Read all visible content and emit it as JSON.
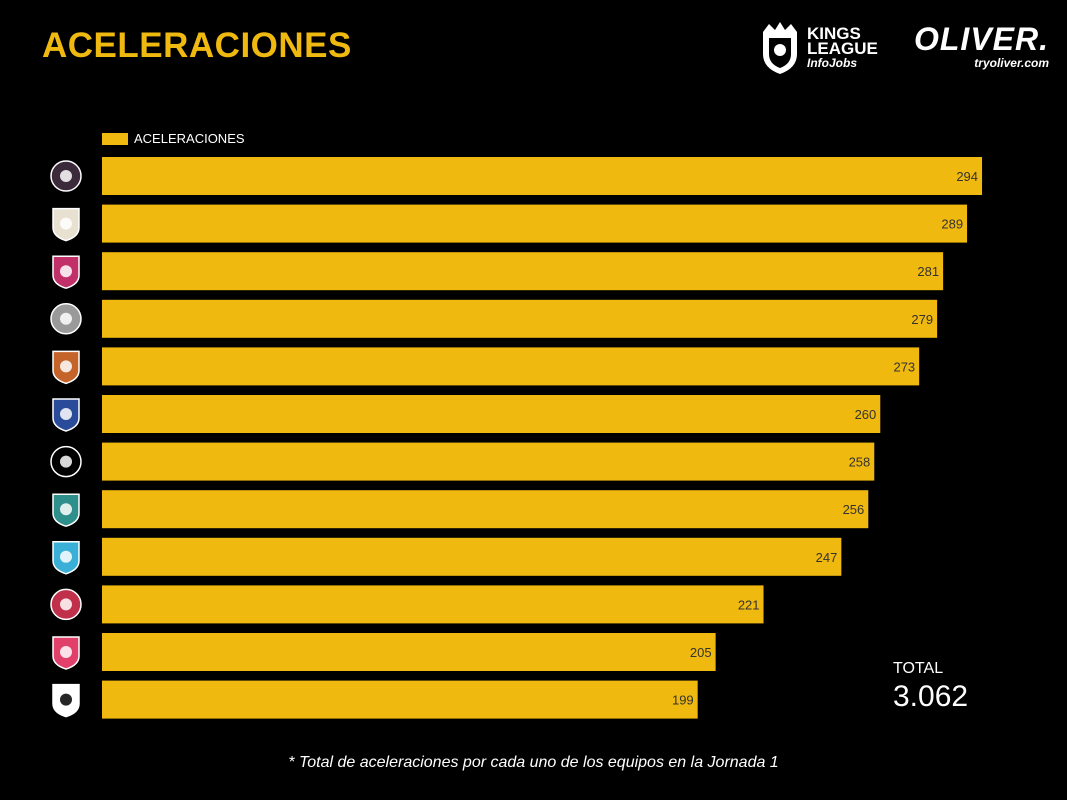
{
  "header": {
    "title": "ACELERACIONES",
    "brand_league_line1": "KINGS",
    "brand_league_line2": "LEAGUE",
    "brand_league_sponsor": "InfoJobs",
    "brand_partner": "OLIVER.",
    "brand_partner_url": "tryoliver.com"
  },
  "chart_data": {
    "type": "bar",
    "orientation": "horizontal",
    "title": "ACELERACIONES",
    "series": [
      {
        "name": "ACELERACIONES",
        "color": "#f0b90f",
        "values": [
          294,
          289,
          281,
          279,
          273,
          260,
          258,
          256,
          247,
          221,
          205,
          199
        ]
      }
    ],
    "value_labels": [
      "294",
      "289",
      "281",
      "279",
      "273",
      "260",
      "258",
      "256",
      "247",
      "221",
      "205",
      "199"
    ],
    "xlim": [
      0,
      300
    ],
    "legend": "top-left",
    "grid": false
  },
  "team_icons": [
    "team-crest-pink-k-icon",
    "team-crest-lightning-icon",
    "team-crest-shield-pink-icon",
    "team-crest-tree-icon",
    "team-crest-lion-icon",
    "team-crest-flame-icon",
    "team-crest-xb-icon",
    "team-crest-teal-shield-icon",
    "team-crest-1k-icon",
    "team-crest-red-circle-icon",
    "team-crest-pink-shield-icon",
    "team-crest-pio-icon"
  ],
  "summary": {
    "total_label": "TOTAL",
    "total_value": "3.062"
  },
  "footnote": "* Total de aceleraciones por cada uno de los equipos en la Jornada 1",
  "colors": {
    "background": "#000000",
    "accent": "#f0b90f",
    "text": "#ffffff"
  }
}
